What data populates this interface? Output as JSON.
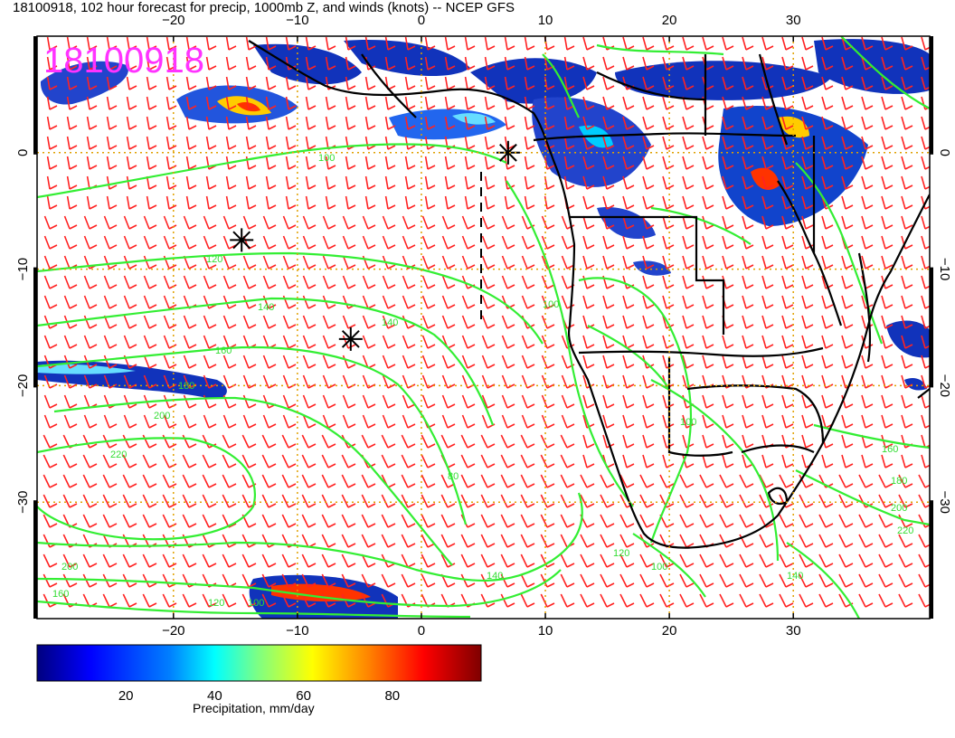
{
  "title": "18100918, 102 hour forecast for precip, 1000mb Z, and winds (knots) -- NCEP GFS",
  "stamp": "18100918",
  "map": {
    "lon_range": [
      -31,
      41
    ],
    "lat_range": [
      -40,
      10
    ],
    "lon_ticks": [
      -20,
      -10,
      0,
      10,
      20,
      30
    ],
    "lat_ticks": [
      0,
      -10,
      -20,
      -30
    ],
    "lon_tick_labels": [
      "−20",
      "−10",
      "0",
      "10",
      "20",
      "30"
    ],
    "lat_tick_labels": [
      "0",
      "−10",
      "−20",
      "−30"
    ],
    "grid": true,
    "contour_color": "#33ee33",
    "barb_color": "#ff2222",
    "coast_color": "#000000",
    "contour_labels": [
      "100",
      "120",
      "140",
      "160",
      "180",
      "200",
      "220",
      "200",
      "160",
      "140",
      "120",
      "100",
      "80",
      "100",
      "100",
      "120",
      "140",
      "160",
      "180",
      "200",
      "220",
      "140",
      "100"
    ],
    "storm_symbols": [
      {
        "lon": 7,
        "lat": 0
      },
      {
        "lon": -14.5,
        "lat": -7.5
      },
      {
        "lon": -5.7,
        "lat": -16
      }
    ]
  },
  "colorbar": {
    "ticks": [
      "20",
      "40",
      "60",
      "80"
    ],
    "tick_values": [
      20,
      40,
      60,
      80
    ],
    "range": [
      0,
      100
    ],
    "label": "Precipitation, mm/day",
    "colors": [
      "#00007f",
      "#0000ff",
      "#0080ff",
      "#00ffff",
      "#80ff80",
      "#ffff00",
      "#ff8000",
      "#ff0000",
      "#7f0000"
    ]
  }
}
